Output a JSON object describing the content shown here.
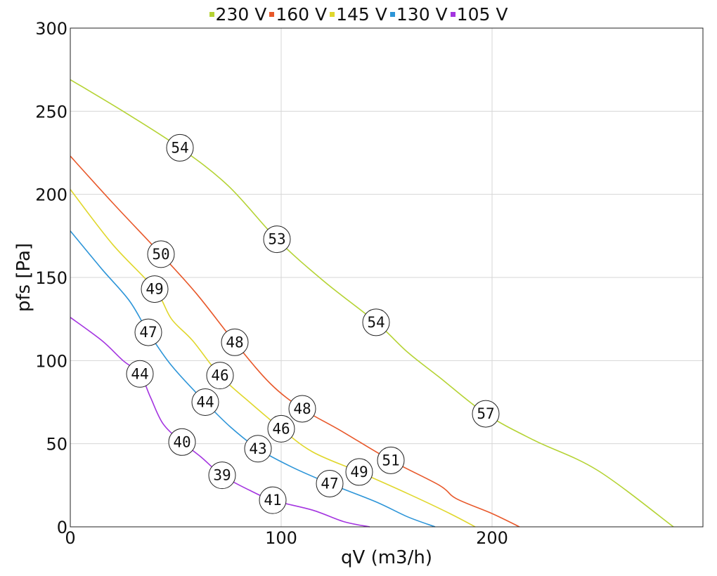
{
  "chart_data": {
    "type": "line",
    "xlabel": "qV (m3/h)",
    "ylabel": "pfs [Pa]",
    "xlim": [
      0,
      300
    ],
    "ylim": [
      0,
      300
    ],
    "x_ticks": [
      0,
      100,
      200
    ],
    "y_ticks": [
      0,
      50,
      100,
      150,
      200,
      250,
      300
    ],
    "grid": true,
    "legend_position": "top-center",
    "series": [
      {
        "name": "230 V",
        "color": "#b5d334",
        "points": [
          [
            0,
            269
          ],
          [
            25,
            250
          ],
          [
            52,
            228
          ],
          [
            75,
            205
          ],
          [
            98,
            173
          ],
          [
            120,
            148
          ],
          [
            145,
            123
          ],
          [
            160,
            105
          ],
          [
            175,
            90
          ],
          [
            197,
            68
          ],
          [
            220,
            52
          ],
          [
            250,
            34
          ],
          [
            286,
            0
          ]
        ],
        "labels": [
          {
            "x": 52,
            "y": 228,
            "text": "54"
          },
          {
            "x": 98,
            "y": 173,
            "text": "53"
          },
          {
            "x": 145,
            "y": 123,
            "text": "54"
          },
          {
            "x": 197,
            "y": 68,
            "text": "57"
          }
        ]
      },
      {
        "name": "160 V",
        "color": "#e8582a",
        "points": [
          [
            0,
            223
          ],
          [
            20,
            195
          ],
          [
            43,
            164
          ],
          [
            60,
            140
          ],
          [
            78,
            111
          ],
          [
            95,
            86
          ],
          [
            110,
            71
          ],
          [
            128,
            58
          ],
          [
            152,
            40
          ],
          [
            175,
            25
          ],
          [
            183,
            17
          ],
          [
            200,
            8
          ],
          [
            213,
            0
          ]
        ],
        "labels": [
          {
            "x": 43,
            "y": 164,
            "text": "50"
          },
          {
            "x": 78,
            "y": 111,
            "text": "48"
          },
          {
            "x": 110,
            "y": 71,
            "text": "48"
          },
          {
            "x": 152,
            "y": 40,
            "text": "51"
          }
        ]
      },
      {
        "name": "145 V",
        "color": "#e0d72c",
        "points": [
          [
            0,
            203
          ],
          [
            20,
            170
          ],
          [
            40,
            143
          ],
          [
            48,
            125
          ],
          [
            58,
            112
          ],
          [
            71,
            91
          ],
          [
            85,
            75
          ],
          [
            100,
            59
          ],
          [
            115,
            45
          ],
          [
            137,
            33
          ],
          [
            160,
            20
          ],
          [
            180,
            8
          ],
          [
            192,
            0
          ]
        ],
        "labels": [
          {
            "x": 40,
            "y": 143,
            "text": "49"
          },
          {
            "x": 71,
            "y": 91,
            "text": "46"
          },
          {
            "x": 100,
            "y": 59,
            "text": "46"
          },
          {
            "x": 137,
            "y": 33,
            "text": "49"
          }
        ]
      },
      {
        "name": "130 V",
        "color": "#2d95d8",
        "points": [
          [
            0,
            178
          ],
          [
            15,
            155
          ],
          [
            28,
            136
          ],
          [
            37,
            117
          ],
          [
            48,
            97
          ],
          [
            64,
            75
          ],
          [
            76,
            60
          ],
          [
            89,
            47
          ],
          [
            105,
            36
          ],
          [
            123,
            26
          ],
          [
            145,
            15
          ],
          [
            160,
            6
          ],
          [
            173,
            0
          ]
        ],
        "labels": [
          {
            "x": 37,
            "y": 117,
            "text": "47"
          },
          {
            "x": 64,
            "y": 75,
            "text": "44"
          },
          {
            "x": 89,
            "y": 47,
            "text": "43"
          },
          {
            "x": 123,
            "y": 26,
            "text": "47"
          }
        ]
      },
      {
        "name": "105 V",
        "color": "#a435e0",
        "points": [
          [
            0,
            126
          ],
          [
            15,
            112
          ],
          [
            25,
            100
          ],
          [
            33,
            92
          ],
          [
            38,
            78
          ],
          [
            44,
            62
          ],
          [
            53,
            51
          ],
          [
            62,
            42
          ],
          [
            72,
            31
          ],
          [
            85,
            22
          ],
          [
            96,
            16
          ],
          [
            115,
            10
          ],
          [
            130,
            3
          ],
          [
            142,
            0
          ]
        ],
        "labels": [
          {
            "x": 33,
            "y": 92,
            "text": "44"
          },
          {
            "x": 53,
            "y": 51,
            "text": "40"
          },
          {
            "x": 72,
            "y": 31,
            "text": "39"
          },
          {
            "x": 96,
            "y": 16,
            "text": "41"
          }
        ]
      }
    ]
  }
}
